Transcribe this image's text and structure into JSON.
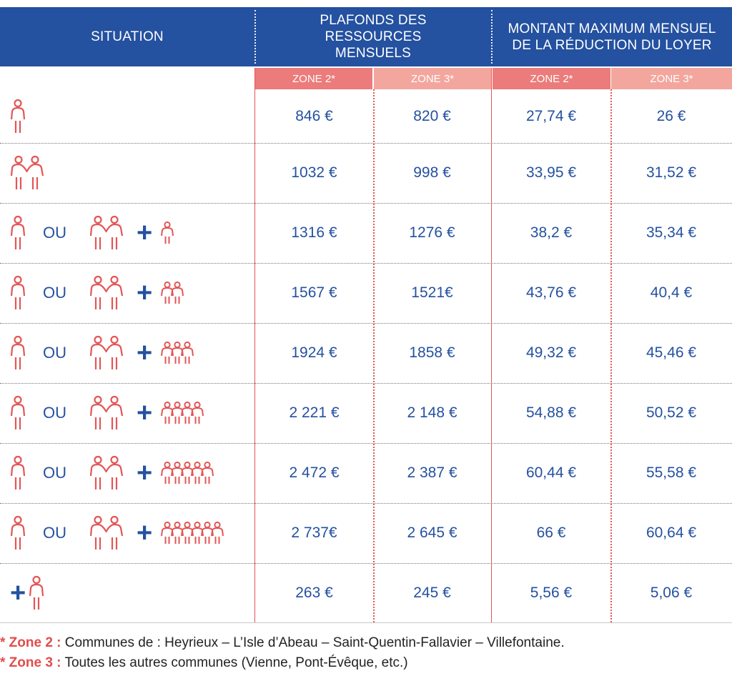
{
  "header": {
    "situation": "SITUATION",
    "plafonds": "PLAFONDS DES RESSOURCES MENSUELS",
    "montant": "MONTANT MAXIMUM MENSUEL DE LA RÉDUCTION DU LOYER"
  },
  "zones": [
    "ZONE 2*",
    "ZONE 3*",
    "ZONE 2*",
    "ZONE 3*"
  ],
  "or_label": "OU",
  "plus_label": "+",
  "rows": [
    {
      "situation": {
        "type": "single"
      },
      "values": [
        "846 €",
        "820 €",
        "27,74 €",
        "26 €"
      ]
    },
    {
      "situation": {
        "type": "couple"
      },
      "values": [
        "1032 €",
        "998 €",
        "33,95 €",
        "31,52 €"
      ]
    },
    {
      "situation": {
        "type": "family",
        "children": 1
      },
      "values": [
        "1316 €",
        "1276 €",
        "38,2 €",
        "35,34 €"
      ]
    },
    {
      "situation": {
        "type": "family",
        "children": 2
      },
      "values": [
        "1567 €",
        "1521€",
        "43,76 €",
        "40,4 €"
      ]
    },
    {
      "situation": {
        "type": "family",
        "children": 3
      },
      "values": [
        "1924 €",
        "1858 €",
        "49,32 €",
        "45,46 €"
      ]
    },
    {
      "situation": {
        "type": "family",
        "children": 4
      },
      "values": [
        "2 221 €",
        "2 148 €",
        "54,88 €",
        "50,52 €"
      ]
    },
    {
      "situation": {
        "type": "family",
        "children": 5
      },
      "values": [
        "2 472 €",
        "2 387 €",
        "60,44 €",
        "55,58 €"
      ]
    },
    {
      "situation": {
        "type": "family",
        "children": 6
      },
      "values": [
        "2 737€",
        "2 645 €",
        "66 €",
        "60,64 €"
      ]
    },
    {
      "situation": {
        "type": "extra_person"
      },
      "values": [
        "263 €",
        "245 €",
        "5,56 €",
        "5,06 €"
      ]
    }
  ],
  "footnotes": [
    {
      "key": "* Zone 2 :",
      "text": " Communes de : Heyrieux – L’Isle d’Abeau – Saint-Quentin-Fallavier – Villefontaine."
    },
    {
      "key": "* Zone 3 :",
      "text": " Toutes les autres communes (Vienne, Pont-Évêque, etc.)"
    }
  ],
  "colors": {
    "blue": "#2451a0",
    "coral": "#e35656",
    "zone2": "#ec7b7b",
    "zone3": "#f3a69d"
  },
  "icons": {
    "person": "person-icon",
    "couple": "couple-icon",
    "child": "child-icon"
  }
}
